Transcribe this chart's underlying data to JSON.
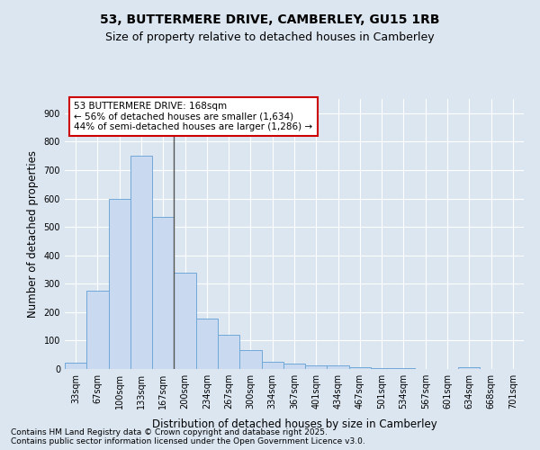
{
  "title_line1": "53, BUTTERMERE DRIVE, CAMBERLEY, GU15 1RB",
  "title_line2": "Size of property relative to detached houses in Camberley",
  "xlabel": "Distribution of detached houses by size in Camberley",
  "ylabel": "Number of detached properties",
  "categories": [
    "33sqm",
    "67sqm",
    "100sqm",
    "133sqm",
    "167sqm",
    "200sqm",
    "234sqm",
    "267sqm",
    "300sqm",
    "334sqm",
    "367sqm",
    "401sqm",
    "434sqm",
    "467sqm",
    "501sqm",
    "534sqm",
    "567sqm",
    "601sqm",
    "634sqm",
    "668sqm",
    "701sqm"
  ],
  "values": [
    22,
    275,
    600,
    750,
    535,
    340,
    178,
    120,
    68,
    25,
    18,
    12,
    12,
    5,
    4,
    3,
    0,
    0,
    6,
    0,
    0
  ],
  "bar_color": "#c9daf0",
  "bar_edge_color": "#6fa8d8",
  "vline_bin_index": 4,
  "vline_color": "#555555",
  "annotation_text": "53 BUTTERMERE DRIVE: 168sqm\n← 56% of detached houses are smaller (1,634)\n44% of semi-detached houses are larger (1,286) →",
  "annotation_box_edge": "#cc0000",
  "annotation_box_face": "#ffffff",
  "ylim": [
    0,
    950
  ],
  "yticks": [
    0,
    100,
    200,
    300,
    400,
    500,
    600,
    700,
    800,
    900
  ],
  "background_color": "#dce6f1",
  "plot_background": "#dce6f1",
  "grid_color": "#ffffff",
  "footnote1": "Contains HM Land Registry data © Crown copyright and database right 2025.",
  "footnote2": "Contains public sector information licensed under the Open Government Licence v3.0.",
  "title_fontsize": 10,
  "subtitle_fontsize": 9,
  "axis_label_fontsize": 8.5,
  "tick_fontsize": 7,
  "annotation_fontsize": 7.5,
  "footnote_fontsize": 6.5
}
